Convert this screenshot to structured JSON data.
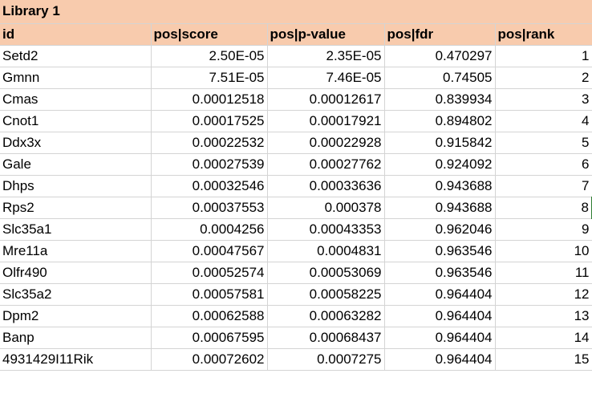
{
  "table": {
    "title": "Library 1",
    "columns": [
      "id",
      "pos|score",
      "pos|p-value",
      "pos|fdr",
      "pos|rank"
    ],
    "rows": [
      [
        "Setd2",
        "2.50E-05",
        "2.35E-05",
        "0.470297",
        "1"
      ],
      [
        "Gmnn",
        "7.51E-05",
        "7.46E-05",
        "0.74505",
        "2"
      ],
      [
        "Cmas",
        "0.00012518",
        "0.00012617",
        "0.839934",
        "3"
      ],
      [
        "Cnot1",
        "0.00017525",
        "0.00017921",
        "0.894802",
        "4"
      ],
      [
        "Ddx3x",
        "0.00022532",
        "0.00022928",
        "0.915842",
        "5"
      ],
      [
        "Gale",
        "0.00027539",
        "0.00027762",
        "0.924092",
        "6"
      ],
      [
        "Dhps",
        "0.00032546",
        "0.00033636",
        "0.943688",
        "7"
      ],
      [
        "Rps2",
        "0.00037553",
        "0.000378",
        "0.943688",
        "8"
      ],
      [
        "Slc35a1",
        "0.0004256",
        "0.00043353",
        "0.962046",
        "9"
      ],
      [
        "Mre11a",
        "0.00047567",
        "0.0004831",
        "0.963546",
        "10"
      ],
      [
        "Olfr490",
        "0.00052574",
        "0.00053069",
        "0.963546",
        "11"
      ],
      [
        "Slc35a2",
        "0.00057581",
        "0.00058225",
        "0.964404",
        "12"
      ],
      [
        "Dpm2",
        "0.00062588",
        "0.00063282",
        "0.964404",
        "13"
      ],
      [
        "Banp",
        "0.00067595",
        "0.00068437",
        "0.964404",
        "14"
      ],
      [
        "4931429I11Rik",
        "0.00072602",
        "0.0007275",
        "0.964404",
        "15"
      ]
    ]
  },
  "colors": {
    "header_fill": "#f8cbad",
    "gridline": "#d4d4d4",
    "selection_border": "#2e7d32"
  }
}
